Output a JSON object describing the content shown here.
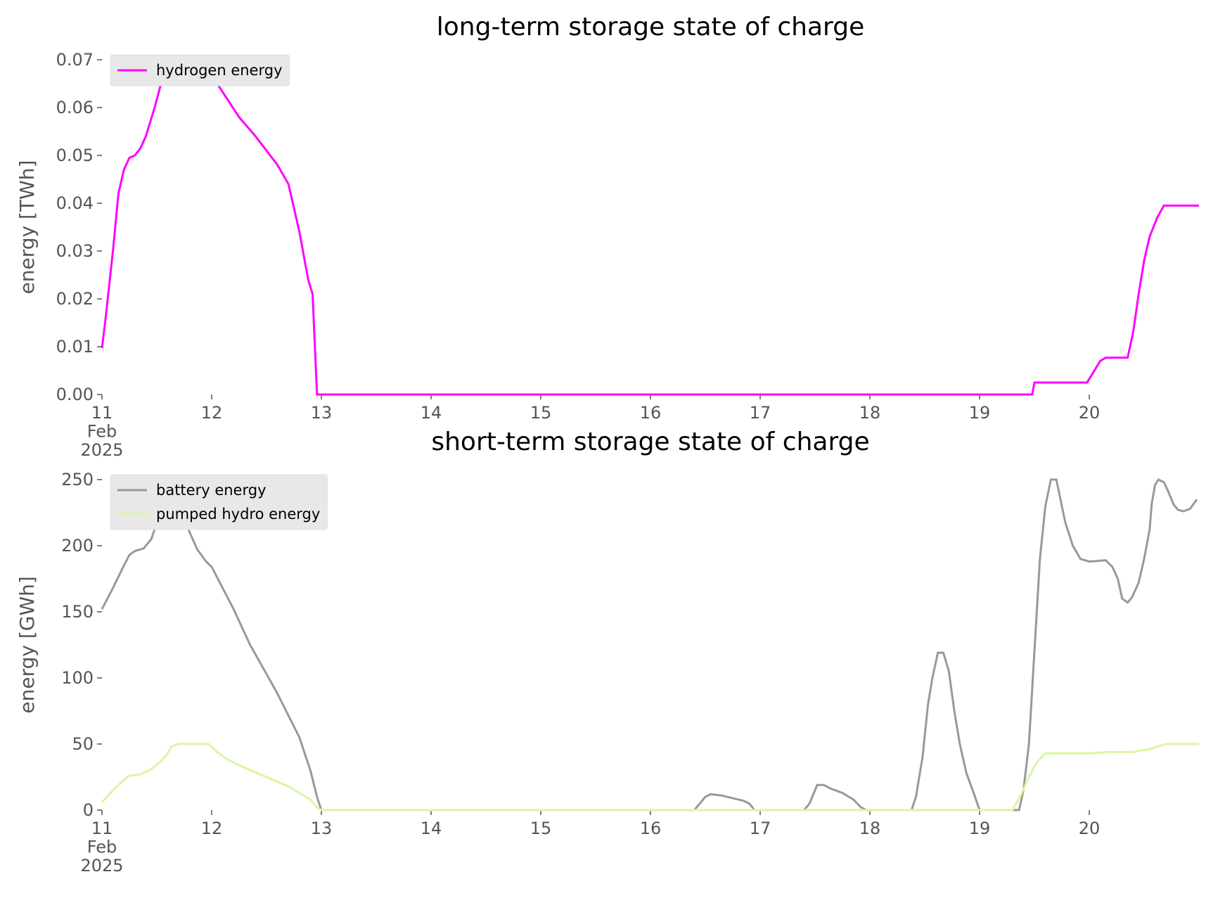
{
  "chart_data": [
    {
      "type": "line",
      "title": "long-term storage state of charge",
      "ylabel": "energy [TWh]",
      "legend": "upper left",
      "xlim": [
        11,
        21
      ],
      "xticks": [
        {
          "value": 11,
          "label": "11\nFeb\n2025"
        },
        12,
        13,
        14,
        15,
        16,
        17,
        18,
        19,
        20
      ],
      "ylim": [
        0,
        0.07
      ],
      "yticks": [
        {
          "value": 0,
          "label": "0.00"
        },
        {
          "value": 0.01,
          "label": "0.01"
        },
        {
          "value": 0.02,
          "label": "0.02"
        },
        {
          "value": 0.03,
          "label": "0.03"
        },
        {
          "value": 0.04,
          "label": "0.04"
        },
        {
          "value": 0.05,
          "label": "0.05"
        },
        {
          "value": 0.06,
          "label": "0.06"
        },
        {
          "value": 0.07,
          "label": "0.07"
        }
      ],
      "series": [
        {
          "name": "hydrogen energy",
          "color": "#ff00ff",
          "x": [
            11.0,
            11.03,
            11.1,
            11.15,
            11.2,
            11.25,
            11.3,
            11.35,
            11.4,
            11.48,
            11.55,
            11.62,
            11.95,
            12.05,
            12.25,
            12.4,
            12.6,
            12.7,
            12.8,
            12.88,
            12.92,
            12.96,
            19.48,
            19.5,
            19.98,
            20.02,
            20.1,
            20.15,
            20.35,
            20.4,
            20.45,
            20.5,
            20.55,
            20.62,
            20.68,
            21.0
          ],
          "values": [
            0.0097,
            0.0153,
            0.03,
            0.042,
            0.047,
            0.0495,
            0.05,
            0.0515,
            0.054,
            0.06,
            0.066,
            0.069,
            0.069,
            0.065,
            0.058,
            0.054,
            0.048,
            0.044,
            0.034,
            0.024,
            0.021,
            0,
            0,
            0.0025,
            0.0025,
            0.004,
            0.007,
            0.0077,
            0.0077,
            0.013,
            0.021,
            0.028,
            0.033,
            0.037,
            0.0395,
            0.0395
          ]
        }
      ]
    },
    {
      "type": "line",
      "title": "short-term storage state of charge",
      "ylabel": "energy [GWh]",
      "legend": "upper left",
      "xlim": [
        11,
        21
      ],
      "xticks": [
        {
          "value": 11,
          "label": "11\nFeb\n2025"
        },
        12,
        13,
        14,
        15,
        16,
        17,
        18,
        19,
        20
      ],
      "ylim": [
        0,
        250
      ],
      "yticks": [
        0,
        50,
        100,
        150,
        200,
        250
      ],
      "series": [
        {
          "name": "battery energy",
          "color": "#999999",
          "x": [
            11.0,
            11.1,
            11.2,
            11.25,
            11.3,
            11.38,
            11.45,
            11.52,
            11.58,
            11.65,
            11.72,
            11.8,
            11.87,
            11.95,
            12.0,
            12.1,
            12.2,
            12.35,
            12.5,
            12.6,
            12.8,
            12.9,
            12.96,
            13.0,
            16.4,
            16.5,
            16.55,
            16.65,
            16.85,
            16.9,
            16.95,
            17.4,
            17.45,
            17.52,
            17.58,
            17.65,
            17.75,
            17.85,
            17.92,
            17.97,
            18.38,
            18.42,
            18.48,
            18.53,
            18.57,
            18.62,
            18.67,
            18.72,
            18.77,
            18.82,
            18.88,
            18.95,
            19.0,
            19.36,
            19.4,
            19.45,
            19.5,
            19.55,
            19.6,
            19.65,
            19.7,
            19.78,
            19.85,
            19.92,
            20.0,
            20.15,
            20.21,
            20.26,
            20.3,
            20.35,
            20.39,
            20.45,
            20.5,
            20.55,
            20.57,
            20.6,
            20.63,
            20.68,
            20.72,
            20.77,
            20.81,
            20.86,
            20.92,
            20.98
          ],
          "values": [
            152,
            168,
            185,
            193,
            196,
            198,
            205,
            222,
            245,
            250,
            230,
            210,
            197,
            188,
            184,
            168,
            152,
            125,
            103,
            88,
            55,
            30,
            10,
            0,
            0,
            10,
            12,
            11,
            7,
            5,
            0,
            0,
            5,
            19,
            19,
            16,
            13,
            8,
            2,
            0,
            0,
            10,
            40,
            80,
            100,
            119,
            119,
            105,
            75,
            50,
            28,
            12,
            0,
            0,
            15,
            50,
            120,
            190,
            230,
            250,
            250,
            218,
            200,
            190,
            188,
            189,
            184,
            175,
            160,
            157,
            161,
            172,
            190,
            212,
            232,
            246,
            250,
            248,
            241,
            231,
            227,
            226,
            228,
            235
          ]
        },
        {
          "name": "pumped hydro energy",
          "color": "#d9f7a0",
          "x": [
            11.0,
            11.1,
            11.2,
            11.25,
            11.35,
            11.45,
            11.55,
            11.6,
            11.63,
            11.7,
            11.97,
            12.05,
            12.15,
            12.3,
            12.5,
            12.7,
            12.8,
            12.9,
            12.96,
            13.0,
            19.3,
            19.38,
            19.45,
            19.52,
            19.6,
            20.0,
            20.2,
            20.4,
            20.55,
            20.62,
            20.7,
            21.0
          ],
          "values": [
            6,
            15,
            23,
            26,
            27,
            31,
            38,
            43,
            48,
            50,
            50,
            44,
            38,
            32,
            25,
            18,
            13,
            8,
            2,
            0,
            0,
            12,
            25,
            36,
            43,
            43,
            44,
            44,
            46,
            48,
            50,
            50
          ]
        }
      ]
    }
  ]
}
